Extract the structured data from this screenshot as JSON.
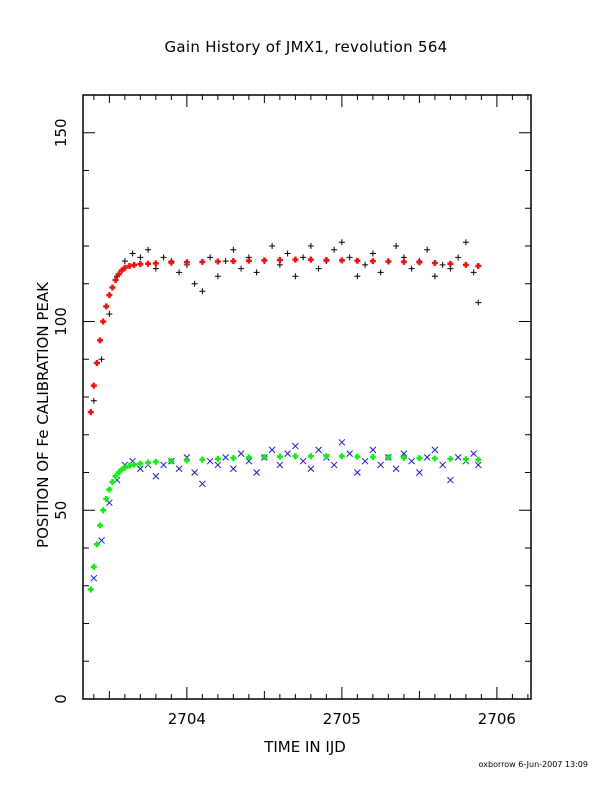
{
  "chart_data": {
    "type": "scatter",
    "title": "Gain History of JMX1, revolution 564",
    "xlabel": "TIME IN IJD",
    "ylabel": "POSITION OF Fe CALIBRATION PEAK",
    "xlim": [
      2703.33,
      2706.22
    ],
    "ylim": [
      0,
      160
    ],
    "xticks": [
      2704,
      2705,
      2706
    ],
    "yticks": [
      0,
      50,
      100,
      150
    ],
    "grid": false,
    "series": [
      {
        "marker": "plus",
        "color": "#000000",
        "x": [
          2703.4,
          2703.45,
          2703.5,
          2703.55,
          2703.6,
          2703.65,
          2703.7,
          2703.75,
          2703.8,
          2703.85,
          2703.9,
          2703.95,
          2704.0,
          2704.05,
          2704.1,
          2704.15,
          2704.2,
          2704.25,
          2704.3,
          2704.35,
          2704.4,
          2704.45,
          2704.5,
          2704.55,
          2704.6,
          2704.65,
          2704.7,
          2704.75,
          2704.8,
          2704.85,
          2704.9,
          2704.95,
          2705.0,
          2705.05,
          2705.1,
          2705.15,
          2705.2,
          2705.25,
          2705.3,
          2705.35,
          2705.4,
          2705.45,
          2705.5,
          2705.55,
          2705.6,
          2705.65,
          2705.7,
          2705.75,
          2705.8,
          2705.85,
          2705.88
        ],
        "y": [
          79,
          90,
          102,
          112,
          116,
          118,
          117,
          119,
          114,
          117,
          116,
          113,
          115,
          110,
          108,
          117,
          112,
          116,
          119,
          114,
          117,
          113,
          116,
          120,
          115,
          118,
          112,
          117,
          120,
          114,
          116,
          119,
          121,
          117,
          112,
          115,
          118,
          113,
          116,
          120,
          117,
          114,
          116,
          119,
          112,
          115,
          114,
          117,
          121,
          113,
          105
        ]
      },
      {
        "marker": "x",
        "color": "#1a1ad0",
        "x": [
          2703.4,
          2703.45,
          2703.5,
          2703.55,
          2703.6,
          2703.65,
          2703.7,
          2703.75,
          2703.8,
          2703.85,
          2703.9,
          2703.95,
          2704.0,
          2704.05,
          2704.1,
          2704.15,
          2704.2,
          2704.25,
          2704.3,
          2704.35,
          2704.4,
          2704.45,
          2704.5,
          2704.55,
          2704.6,
          2704.65,
          2704.7,
          2704.75,
          2704.8,
          2704.85,
          2704.9,
          2704.95,
          2705.0,
          2705.05,
          2705.1,
          2705.15,
          2705.2,
          2705.25,
          2705.3,
          2705.35,
          2705.4,
          2705.45,
          2705.5,
          2705.55,
          2705.6,
          2705.65,
          2705.7,
          2705.75,
          2705.8,
          2705.85,
          2705.88
        ],
        "y": [
          32,
          42,
          52,
          58,
          62,
          63,
          61,
          62,
          59,
          62,
          63,
          61,
          64,
          60,
          57,
          63,
          62,
          64,
          61,
          65,
          63,
          60,
          64,
          66,
          62,
          65,
          67,
          63,
          61,
          66,
          64,
          62,
          68,
          65,
          60,
          63,
          66,
          62,
          64,
          61,
          65,
          63,
          60,
          64,
          66,
          62,
          58,
          64,
          63,
          65,
          62
        ]
      },
      {
        "marker": "plus",
        "color": "#ee1111",
        "x": [
          2703.38,
          2703.4,
          2703.42,
          2703.44,
          2703.46,
          2703.48,
          2703.5,
          2703.52,
          2703.54,
          2703.56,
          2703.58,
          2703.6,
          2703.63,
          2703.66,
          2703.7,
          2703.75,
          2703.8,
          2703.9,
          2704.0,
          2704.1,
          2704.2,
          2704.3,
          2704.4,
          2704.5,
          2704.6,
          2704.7,
          2704.8,
          2704.9,
          2705.0,
          2705.1,
          2705.2,
          2705.3,
          2705.4,
          2705.5,
          2705.6,
          2705.7,
          2705.8,
          2705.88
        ],
        "y": [
          76,
          83,
          89,
          95,
          100,
          104,
          107,
          109,
          111,
          112.5,
          113.5,
          114.2,
          114.7,
          115.0,
          115.2,
          115.3,
          115.4,
          115.6,
          115.7,
          115.8,
          115.9,
          116.0,
          116.1,
          116.2,
          116.3,
          116.4,
          116.4,
          116.3,
          116.2,
          116.1,
          116.0,
          115.9,
          115.8,
          115.7,
          115.5,
          115.3,
          115.0,
          114.7
        ]
      },
      {
        "marker": "plus",
        "color": "#11ee11",
        "x": [
          2703.38,
          2703.4,
          2703.42,
          2703.44,
          2703.46,
          2703.48,
          2703.5,
          2703.52,
          2703.54,
          2703.56,
          2703.58,
          2703.6,
          2703.63,
          2703.66,
          2703.7,
          2703.75,
          2703.8,
          2703.9,
          2704.0,
          2704.1,
          2704.2,
          2704.3,
          2704.4,
          2704.5,
          2704.6,
          2704.7,
          2704.8,
          2704.9,
          2705.0,
          2705.1,
          2705.2,
          2705.3,
          2705.4,
          2705.5,
          2705.6,
          2705.7,
          2705.8,
          2705.88
        ],
        "y": [
          29,
          35,
          41,
          46,
          50,
          53,
          55.5,
          57.5,
          59,
          60,
          60.8,
          61.3,
          61.8,
          62.1,
          62.4,
          62.6,
          62.8,
          63.0,
          63.2,
          63.4,
          63.6,
          63.8,
          64.0,
          64.1,
          64.2,
          64.3,
          64.3,
          64.3,
          64.3,
          64.2,
          64.1,
          64.0,
          63.9,
          63.8,
          63.7,
          63.6,
          63.5,
          63.4
        ]
      }
    ]
  },
  "footer": "oxborrow  6-Jun-2007 13:09"
}
